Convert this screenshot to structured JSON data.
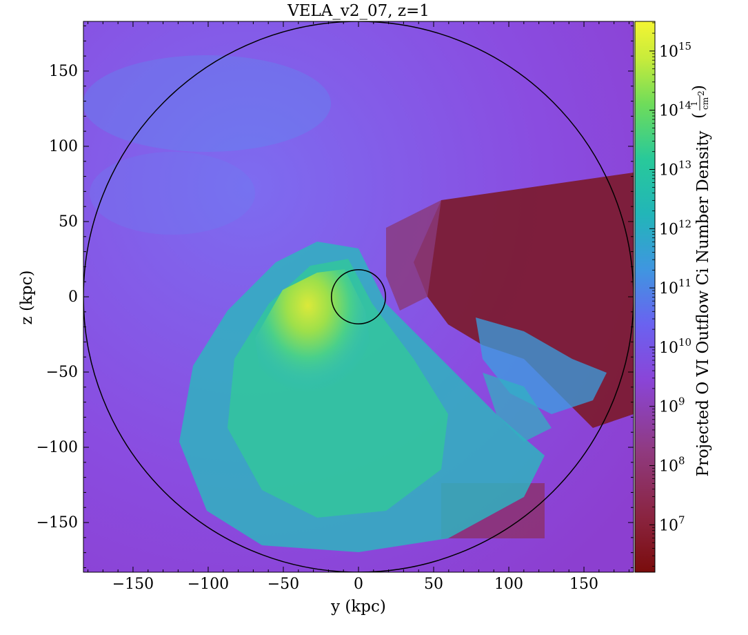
{
  "chart_data": {
    "type": "heatmap",
    "title": "VELA_v2_07, z=1",
    "xlabel": "y  (kpc)",
    "ylabel": "z  (kpc)",
    "xlim": [
      -183,
      183
    ],
    "ylim": [
      -183,
      183
    ],
    "xticks": [
      -150,
      -100,
      -50,
      0,
      50,
      100,
      150
    ],
    "yticks": [
      150,
      100,
      50,
      0,
      -50,
      -100,
      -150
    ],
    "xtick_labels": [
      "−150",
      "−100",
      "−50",
      "0",
      "50",
      "100",
      "150"
    ],
    "ytick_labels": [
      "150",
      "100",
      "50",
      "0",
      "−50",
      "−100",
      "−150"
    ],
    "circles": [
      {
        "center": [
          0,
          0
        ],
        "radius": 183
      },
      {
        "center": [
          0,
          0
        ],
        "radius": 18
      }
    ],
    "colorbar": {
      "label": "Projected O VI Outflow Ci Number Density",
      "unit_num": "1",
      "unit_den": "cm",
      "scale": "log",
      "range_exp": [
        6.2,
        15.5
      ],
      "tick_exponents": [
        15,
        14,
        13,
        12,
        11,
        10,
        9,
        8,
        7
      ],
      "tick_base": "10",
      "colormap": "turbo-like (dark red low → purple → blue → green → yellow high)"
    },
    "grid": false
  }
}
